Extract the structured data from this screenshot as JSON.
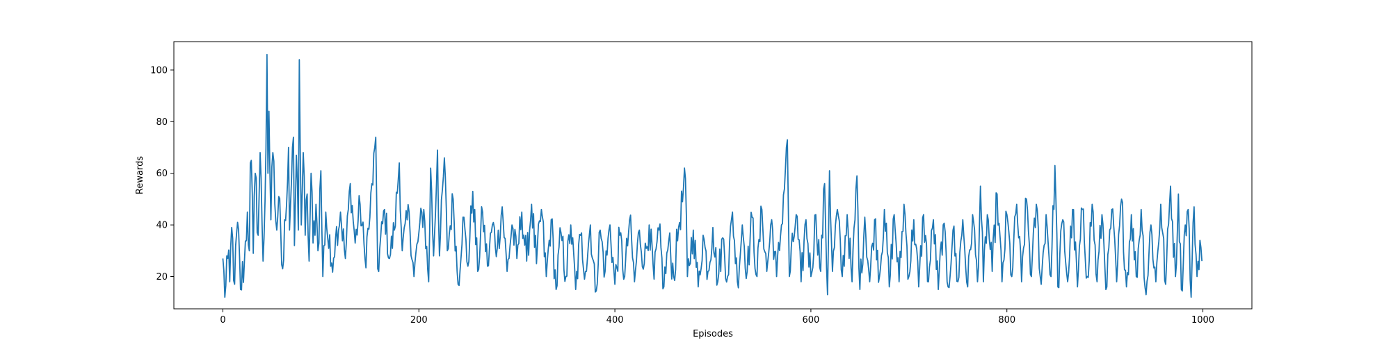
{
  "chart_data": {
    "type": "line",
    "title": "",
    "xlabel": "Episodes",
    "ylabel": "Rewards",
    "xlim": [
      -50,
      1050
    ],
    "ylim": [
      7.5,
      111
    ],
    "xticks": [
      0,
      200,
      400,
      600,
      800,
      1000
    ],
    "yticks": [
      20,
      40,
      60,
      80,
      100
    ],
    "grid": false,
    "legend": "none",
    "line_color": "#1f77b4",
    "n_points": 1000,
    "keypoints": [
      [
        0,
        27
      ],
      [
        2,
        12
      ],
      [
        4,
        28
      ],
      [
        7,
        18
      ],
      [
        9,
        39
      ],
      [
        12,
        17
      ],
      [
        15,
        41
      ],
      [
        18,
        15
      ],
      [
        22,
        26
      ],
      [
        25,
        45
      ],
      [
        27,
        30
      ],
      [
        28,
        64
      ],
      [
        29,
        65
      ],
      [
        31,
        29
      ],
      [
        33,
        60
      ],
      [
        36,
        36
      ],
      [
        38,
        68
      ],
      [
        40,
        40
      ],
      [
        41,
        26
      ],
      [
        43,
        49
      ],
      [
        45,
        106
      ],
      [
        46,
        60
      ],
      [
        47,
        84
      ],
      [
        49,
        42
      ],
      [
        51,
        68
      ],
      [
        53,
        48
      ],
      [
        55,
        38
      ],
      [
        57,
        51
      ],
      [
        59,
        38
      ],
      [
        61,
        23
      ],
      [
        63,
        42
      ],
      [
        65,
        48
      ],
      [
        67,
        70
      ],
      [
        68,
        38
      ],
      [
        70,
        57
      ],
      [
        72,
        74
      ],
      [
        73,
        32
      ],
      [
        75,
        67
      ],
      [
        77,
        38
      ],
      [
        78,
        104
      ],
      [
        80,
        40
      ],
      [
        82,
        68
      ],
      [
        84,
        36
      ],
      [
        86,
        52
      ],
      [
        88,
        26
      ],
      [
        90,
        60
      ],
      [
        92,
        33
      ],
      [
        95,
        48
      ],
      [
        97,
        30
      ],
      [
        100,
        61
      ],
      [
        102,
        20
      ],
      [
        105,
        45
      ],
      [
        110,
        24
      ],
      [
        115,
        35
      ],
      [
        120,
        45
      ],
      [
        125,
        27
      ],
      [
        130,
        56
      ],
      [
        135,
        33
      ],
      [
        140,
        48
      ],
      [
        145,
        27
      ],
      [
        150,
        43
      ],
      [
        156,
        74
      ],
      [
        158,
        23
      ],
      [
        165,
        46
      ],
      [
        170,
        27
      ],
      [
        175,
        38
      ],
      [
        180,
        64
      ],
      [
        183,
        30
      ],
      [
        190,
        45
      ],
      [
        195,
        20
      ],
      [
        200,
        37
      ],
      [
        205,
        46
      ],
      [
        210,
        18
      ],
      [
        212,
        62
      ],
      [
        215,
        28
      ],
      [
        219,
        69
      ],
      [
        221,
        28
      ],
      [
        226,
        66
      ],
      [
        229,
        30
      ],
      [
        235,
        50
      ],
      [
        240,
        17
      ],
      [
        245,
        43
      ],
      [
        250,
        24
      ],
      [
        255,
        53
      ],
      [
        260,
        22
      ],
      [
        265,
        45
      ],
      [
        270,
        24
      ],
      [
        275,
        40
      ],
      [
        280,
        31
      ],
      [
        285,
        47
      ],
      [
        290,
        22
      ],
      [
        295,
        40
      ],
      [
        300,
        27
      ],
      [
        305,
        45
      ],
      [
        310,
        26
      ],
      [
        315,
        48
      ],
      [
        320,
        25
      ],
      [
        325,
        46
      ],
      [
        330,
        20
      ],
      [
        335,
        42
      ],
      [
        340,
        15
      ],
      [
        345,
        37
      ],
      [
        350,
        20
      ],
      [
        355,
        40
      ],
      [
        360,
        15
      ],
      [
        365,
        36
      ],
      [
        370,
        22
      ],
      [
        375,
        40
      ],
      [
        380,
        14
      ],
      [
        385,
        38
      ],
      [
        390,
        22
      ],
      [
        395,
        40
      ],
      [
        400,
        17
      ],
      [
        405,
        36
      ],
      [
        410,
        20
      ],
      [
        415,
        42
      ],
      [
        420,
        18
      ],
      [
        425,
        38
      ],
      [
        430,
        25
      ],
      [
        435,
        40
      ],
      [
        440,
        19
      ],
      [
        445,
        38
      ],
      [
        450,
        16
      ],
      [
        455,
        34
      ],
      [
        460,
        20
      ],
      [
        465,
        39
      ],
      [
        472,
        58
      ],
      [
        474,
        20
      ],
      [
        480,
        38
      ],
      [
        485,
        16
      ],
      [
        490,
        36
      ],
      [
        495,
        22
      ],
      [
        500,
        39
      ],
      [
        505,
        18
      ],
      [
        510,
        35
      ],
      [
        515,
        20
      ],
      [
        520,
        45
      ],
      [
        525,
        18
      ],
      [
        530,
        40
      ],
      [
        535,
        22
      ],
      [
        540,
        43
      ],
      [
        545,
        20
      ],
      [
        550,
        46
      ],
      [
        555,
        22
      ],
      [
        560,
        42
      ],
      [
        565,
        20
      ],
      [
        570,
        40
      ],
      [
        576,
        73
      ],
      [
        578,
        20
      ],
      [
        585,
        44
      ],
      [
        590,
        18
      ],
      [
        595,
        42
      ],
      [
        600,
        20
      ],
      [
        605,
        44
      ],
      [
        610,
        22
      ],
      [
        614,
        56
      ],
      [
        617,
        13
      ],
      [
        619,
        61
      ],
      [
        622,
        22
      ],
      [
        627,
        46
      ],
      [
        632,
        20
      ],
      [
        637,
        44
      ],
      [
        642,
        18
      ],
      [
        647,
        59
      ],
      [
        650,
        15
      ],
      [
        655,
        43
      ],
      [
        660,
        18
      ],
      [
        665,
        42
      ],
      [
        670,
        20
      ],
      [
        675,
        46
      ],
      [
        680,
        16
      ],
      [
        685,
        44
      ],
      [
        690,
        18
      ],
      [
        695,
        48
      ],
      [
        700,
        20
      ],
      [
        705,
        42
      ],
      [
        710,
        16
      ],
      [
        715,
        44
      ],
      [
        720,
        18
      ],
      [
        725,
        42
      ],
      [
        730,
        15
      ],
      [
        735,
        40
      ],
      [
        740,
        16
      ],
      [
        745,
        38
      ],
      [
        750,
        18
      ],
      [
        755,
        42
      ],
      [
        760,
        16
      ],
      [
        765,
        44
      ],
      [
        770,
        18
      ],
      [
        773,
        55
      ],
      [
        776,
        18
      ],
      [
        780,
        44
      ],
      [
        785,
        22
      ],
      [
        790,
        52
      ],
      [
        795,
        18
      ],
      [
        800,
        44
      ],
      [
        805,
        20
      ],
      [
        810,
        48
      ],
      [
        815,
        18
      ],
      [
        820,
        50
      ],
      [
        825,
        20
      ],
      [
        830,
        48
      ],
      [
        835,
        17
      ],
      [
        840,
        44
      ],
      [
        845,
        20
      ],
      [
        849,
        63
      ],
      [
        852,
        16
      ],
      [
        857,
        42
      ],
      [
        862,
        18
      ],
      [
        867,
        46
      ],
      [
        872,
        16
      ],
      [
        877,
        46
      ],
      [
        882,
        20
      ],
      [
        887,
        48
      ],
      [
        892,
        18
      ],
      [
        897,
        44
      ],
      [
        902,
        16
      ],
      [
        907,
        46
      ],
      [
        912,
        18
      ],
      [
        917,
        50
      ],
      [
        922,
        16
      ],
      [
        927,
        44
      ],
      [
        932,
        20
      ],
      [
        937,
        46
      ],
      [
        942,
        13
      ],
      [
        947,
        40
      ],
      [
        952,
        18
      ],
      [
        957,
        48
      ],
      [
        962,
        17
      ],
      [
        967,
        55
      ],
      [
        972,
        20
      ],
      [
        975,
        52
      ],
      [
        978,
        15
      ],
      [
        982,
        40
      ],
      [
        985,
        46
      ],
      [
        988,
        12
      ],
      [
        991,
        47
      ],
      [
        994,
        20
      ],
      [
        997,
        34
      ],
      [
        999,
        26
      ]
    ]
  }
}
